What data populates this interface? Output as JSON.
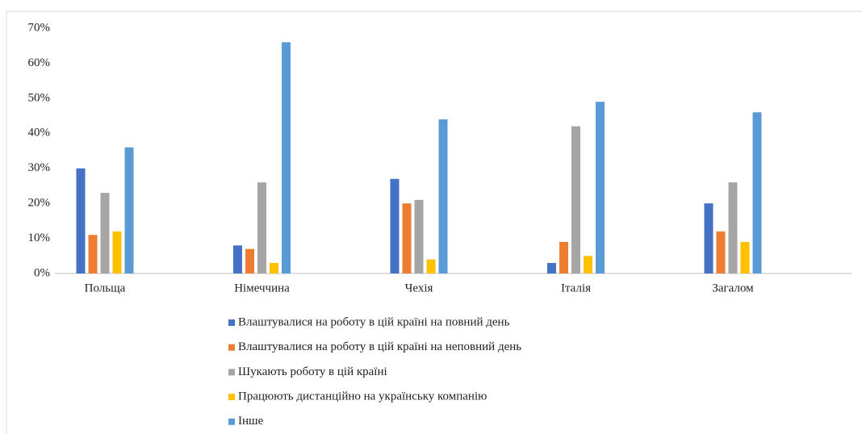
{
  "chart_data": {
    "type": "bar",
    "categories": [
      "Польща",
      "Німеччина",
      "Чехія",
      "Італія",
      "Загалом"
    ],
    "series": [
      {
        "name": "Влаштувалися на роботу в цій країні на повний день",
        "color": "#4472c4",
        "values": [
          30,
          8,
          27,
          3,
          20
        ]
      },
      {
        "name": "Влаштувалися на роботу в цій країні на неповний день",
        "color": "#ed7d31",
        "values": [
          11,
          7,
          20,
          9,
          12
        ]
      },
      {
        "name": "Шукають роботу в цій країні",
        "color": "#a5a5a5",
        "values": [
          23,
          26,
          21,
          42,
          26
        ]
      },
      {
        "name": "Працюють дистанційно на українську компанію",
        "color": "#ffc000",
        "values": [
          12,
          3,
          4,
          5,
          9
        ]
      },
      {
        "name": "Інше",
        "color": "#5b9bd5",
        "values": [
          36,
          66,
          44,
          49,
          46
        ]
      }
    ],
    "ylim": [
      0,
      70
    ],
    "yticks": [
      {
        "value": 0,
        "label": "0%"
      },
      {
        "value": 10,
        "label": "10%"
      },
      {
        "value": 20,
        "label": "20%"
      },
      {
        "value": 30,
        "label": "30%"
      },
      {
        "value": 40,
        "label": "40%"
      },
      {
        "value": 50,
        "label": "50%"
      },
      {
        "value": 60,
        "label": "60%"
      },
      {
        "value": 70,
        "label": "70%"
      }
    ],
    "grid": false,
    "legend": "bottom"
  }
}
